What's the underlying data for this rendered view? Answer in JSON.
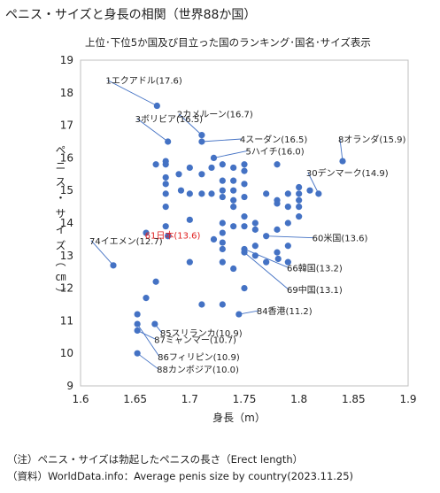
{
  "header": {
    "title": "ペニス・サイズと身長の相関（世界88か国）",
    "subtitle": "上位･下位5か国及び目立った国のランキング･国名･サイズ表示"
  },
  "notes": {
    "note1": "（注）ペニス・サイズは勃起したペニスの長さ（Erect length）",
    "note2": "（資料）WorldData.info：Average penis size by country(2023.11.25)"
  },
  "chart_data": {
    "type": "scatter",
    "title": "ペニス・サイズと身長の相関（世界88か国）",
    "xlabel": "身長（m）",
    "ylabel": "ペニス・サイズ（㎝）",
    "xlim": [
      1.6,
      1.9
    ],
    "ylim": [
      9,
      19
    ],
    "xticks": [
      "1.6",
      "1.65",
      "1.7",
      "1.75",
      "1.8",
      "1.85",
      "1.9"
    ],
    "yticks": [
      "9",
      "10",
      "11",
      "12",
      "13",
      "14",
      "15",
      "16",
      "17",
      "18",
      "19"
    ],
    "grid": "none",
    "marker_color": "#4472C4",
    "highlight_color": "#E02020",
    "points": [
      {
        "x": 1.67,
        "y": 17.6
      },
      {
        "x": 1.68,
        "y": 16.5
      },
      {
        "x": 1.711,
        "y": 16.7
      },
      {
        "x": 1.711,
        "y": 16.5
      },
      {
        "x": 1.722,
        "y": 16.0
      },
      {
        "x": 1.84,
        "y": 15.9
      },
      {
        "x": 1.818,
        "y": 14.9
      },
      {
        "x": 1.63,
        "y": 12.7
      },
      {
        "x": 1.68,
        "y": 13.6
      },
      {
        "x": 1.77,
        "y": 13.6
      },
      {
        "x": 1.75,
        "y": 13.2
      },
      {
        "x": 1.75,
        "y": 13.1
      },
      {
        "x": 1.745,
        "y": 11.2
      },
      {
        "x": 1.668,
        "y": 10.9
      },
      {
        "x": 1.652,
        "y": 10.7
      },
      {
        "x": 1.652,
        "y": 10.9
      },
      {
        "x": 1.652,
        "y": 10.0
      },
      {
        "x": 1.652,
        "y": 11.2
      },
      {
        "x": 1.66,
        "y": 11.7
      },
      {
        "x": 1.669,
        "y": 12.2
      },
      {
        "x": 1.66,
        "y": 13.7
      },
      {
        "x": 1.669,
        "y": 15.8
      },
      {
        "x": 1.678,
        "y": 15.8
      },
      {
        "x": 1.678,
        "y": 15.9
      },
      {
        "x": 1.678,
        "y": 15.4
      },
      {
        "x": 1.678,
        "y": 15.2
      },
      {
        "x": 1.678,
        "y": 14.9
      },
      {
        "x": 1.678,
        "y": 14.5
      },
      {
        "x": 1.678,
        "y": 13.9
      },
      {
        "x": 1.69,
        "y": 15.5
      },
      {
        "x": 1.692,
        "y": 15.0
      },
      {
        "x": 1.7,
        "y": 15.7
      },
      {
        "x": 1.7,
        "y": 14.9
      },
      {
        "x": 1.7,
        "y": 14.1
      },
      {
        "x": 1.7,
        "y": 12.8
      },
      {
        "x": 1.711,
        "y": 15.5
      },
      {
        "x": 1.711,
        "y": 14.9
      },
      {
        "x": 1.711,
        "y": 11.5
      },
      {
        "x": 1.72,
        "y": 15.7
      },
      {
        "x": 1.72,
        "y": 14.9
      },
      {
        "x": 1.722,
        "y": 13.5
      },
      {
        "x": 1.73,
        "y": 15.8
      },
      {
        "x": 1.73,
        "y": 15.3
      },
      {
        "x": 1.73,
        "y": 15.0
      },
      {
        "x": 1.73,
        "y": 14.8
      },
      {
        "x": 1.73,
        "y": 14.0
      },
      {
        "x": 1.73,
        "y": 13.7
      },
      {
        "x": 1.73,
        "y": 13.4
      },
      {
        "x": 1.73,
        "y": 13.2
      },
      {
        "x": 1.73,
        "y": 12.8
      },
      {
        "x": 1.73,
        "y": 11.5
      },
      {
        "x": 1.74,
        "y": 15.7
      },
      {
        "x": 1.74,
        "y": 15.3
      },
      {
        "x": 1.74,
        "y": 15.0
      },
      {
        "x": 1.74,
        "y": 14.7
      },
      {
        "x": 1.74,
        "y": 14.5
      },
      {
        "x": 1.74,
        "y": 13.9
      },
      {
        "x": 1.74,
        "y": 12.6
      },
      {
        "x": 1.75,
        "y": 15.8
      },
      {
        "x": 1.75,
        "y": 15.6
      },
      {
        "x": 1.75,
        "y": 15.2
      },
      {
        "x": 1.75,
        "y": 14.8
      },
      {
        "x": 1.75,
        "y": 14.2
      },
      {
        "x": 1.75,
        "y": 13.9
      },
      {
        "x": 1.75,
        "y": 12.0
      },
      {
        "x": 1.76,
        "y": 14.0
      },
      {
        "x": 1.76,
        "y": 13.8
      },
      {
        "x": 1.76,
        "y": 13.3
      },
      {
        "x": 1.76,
        "y": 13.0
      },
      {
        "x": 1.77,
        "y": 12.8
      },
      {
        "x": 1.77,
        "y": 14.9
      },
      {
        "x": 1.78,
        "y": 15.8
      },
      {
        "x": 1.78,
        "y": 14.7
      },
      {
        "x": 1.78,
        "y": 14.6
      },
      {
        "x": 1.78,
        "y": 13.8
      },
      {
        "x": 1.78,
        "y": 13.1
      },
      {
        "x": 1.781,
        "y": 12.9
      },
      {
        "x": 1.79,
        "y": 14.9
      },
      {
        "x": 1.79,
        "y": 14.5
      },
      {
        "x": 1.79,
        "y": 14.0
      },
      {
        "x": 1.79,
        "y": 13.3
      },
      {
        "x": 1.79,
        "y": 12.8
      },
      {
        "x": 1.8,
        "y": 15.1
      },
      {
        "x": 1.8,
        "y": 14.9
      },
      {
        "x": 1.8,
        "y": 14.7
      },
      {
        "x": 1.8,
        "y": 14.5
      },
      {
        "x": 1.8,
        "y": 14.2
      },
      {
        "x": 1.81,
        "y": 15.0
      }
    ],
    "annotations": [
      {
        "text": "1エクアドル(17.6)",
        "x": 1.67,
        "y": 17.6,
        "highlight": false
      },
      {
        "text": "2カメルーン(16.7)",
        "x": 1.711,
        "y": 16.7,
        "highlight": false
      },
      {
        "text": "3ボリビア(16.5)",
        "x": 1.68,
        "y": 16.5,
        "highlight": false
      },
      {
        "text": "4スーダン(16.5)",
        "x": 1.711,
        "y": 16.5,
        "highlight": false
      },
      {
        "text": "5ハイチ(16.0)",
        "x": 1.722,
        "y": 16.0,
        "highlight": false
      },
      {
        "text": "8オランダ(15.9)",
        "x": 1.84,
        "y": 15.9,
        "highlight": false
      },
      {
        "text": "30デンマーク(14.9)",
        "x": 1.818,
        "y": 14.9,
        "highlight": false
      },
      {
        "text": "74イエメン(12.7)",
        "x": 1.63,
        "y": 12.7,
        "highlight": false
      },
      {
        "text": "61日本(13.6)",
        "x": 1.68,
        "y": 13.6,
        "highlight": true
      },
      {
        "text": "60米国(13.6)",
        "x": 1.77,
        "y": 13.6,
        "highlight": false
      },
      {
        "text": "66韓国(13.2)",
        "x": 1.75,
        "y": 13.2,
        "highlight": false
      },
      {
        "text": "69中国(13.1)",
        "x": 1.75,
        "y": 13.1,
        "highlight": false
      },
      {
        "text": "84香港(11.2)",
        "x": 1.745,
        "y": 11.2,
        "highlight": false
      },
      {
        "text": "85スリランカ(10.9)",
        "x": 1.668,
        "y": 10.9,
        "highlight": false
      },
      {
        "text": "87ミャンマー(10.7)",
        "x": 1.652,
        "y": 10.7,
        "highlight": false
      },
      {
        "text": "86フィリピン(10.9)",
        "x": 1.652,
        "y": 10.9,
        "highlight": false
      },
      {
        "text": "88カンボジア(10.0)",
        "x": 1.652,
        "y": 10.0,
        "highlight": false
      }
    ]
  }
}
